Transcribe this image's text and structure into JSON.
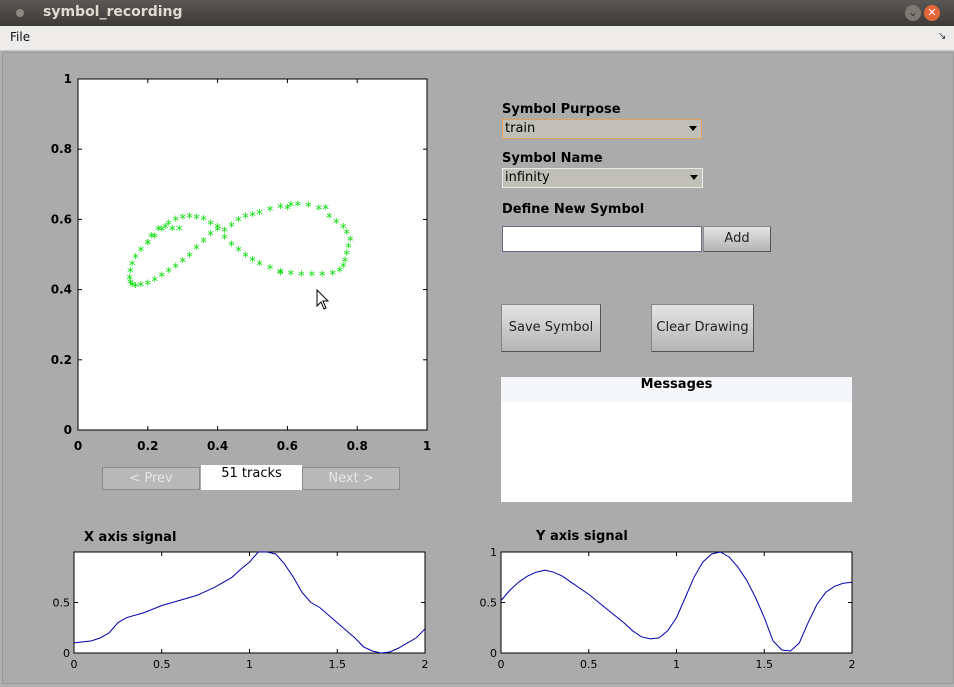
{
  "window": {
    "title": "symbol_recording"
  },
  "menu": {
    "file": "File"
  },
  "purpose": {
    "label": "Symbol Purpose",
    "value": "train"
  },
  "name": {
    "label": "Symbol Name",
    "value": "infinity"
  },
  "define": {
    "label": "Define New Symbol",
    "input_value": "",
    "add_label": "Add"
  },
  "actions": {
    "save_label": "Save Symbol",
    "clear_label": "Clear Drawing"
  },
  "messages": {
    "header": "Messages"
  },
  "nav": {
    "prev_label": "< Prev",
    "tracks_label": "51 tracks",
    "next_label": "Next >"
  },
  "chart_data": [
    {
      "type": "scatter",
      "title": "",
      "xlim": [
        0,
        1
      ],
      "ylim": [
        0,
        1
      ],
      "xticks": [
        "0",
        "0.2",
        "0.4",
        "0.6",
        "0.8",
        "1"
      ],
      "yticks": [
        "0",
        "0.2",
        "0.4",
        "0.6",
        "0.8",
        "1"
      ],
      "marker": "*",
      "color": "#00dd00",
      "x": [
        0.42,
        0.44,
        0.46,
        0.48,
        0.5,
        0.52,
        0.55,
        0.58,
        0.61,
        0.63,
        0.66,
        0.69,
        0.72,
        0.74,
        0.76,
        0.77,
        0.78,
        0.775,
        0.77,
        0.765,
        0.76,
        0.75,
        0.73,
        0.7,
        0.67,
        0.64,
        0.61,
        0.58,
        0.55,
        0.52,
        0.5,
        0.48,
        0.46,
        0.44,
        0.42,
        0.4,
        0.38,
        0.36,
        0.34,
        0.32,
        0.3,
        0.28,
        0.26,
        0.24,
        0.22,
        0.2,
        0.18,
        0.165,
        0.155,
        0.15,
        0.148,
        0.15,
        0.155,
        0.165,
        0.18,
        0.2,
        0.22,
        0.24,
        0.26,
        0.28,
        0.3,
        0.32,
        0.34,
        0.36,
        0.38,
        0.4,
        0.23,
        0.2,
        0.27,
        0.29,
        0.25,
        0.21,
        0.71,
        0.6,
        0.58
      ],
      "y": [
        0.565,
        0.58,
        0.595,
        0.605,
        0.61,
        0.615,
        0.625,
        0.632,
        0.638,
        0.64,
        0.637,
        0.628,
        0.605,
        0.59,
        0.575,
        0.56,
        0.54,
        0.52,
        0.5,
        0.48,
        0.465,
        0.452,
        0.443,
        0.44,
        0.44,
        0.44,
        0.443,
        0.448,
        0.458,
        0.47,
        0.482,
        0.495,
        0.51,
        0.525,
        0.545,
        0.568,
        0.585,
        0.598,
        0.603,
        0.605,
        0.603,
        0.597,
        0.585,
        0.568,
        0.548,
        0.53,
        0.51,
        0.49,
        0.47,
        0.45,
        0.43,
        0.418,
        0.41,
        0.408,
        0.41,
        0.415,
        0.425,
        0.437,
        0.45,
        0.463,
        0.478,
        0.495,
        0.515,
        0.535,
        0.555,
        0.575,
        0.57,
        0.53,
        0.57,
        0.57,
        0.575,
        0.55,
        0.63,
        0.63,
        0.445
      ]
    },
    {
      "type": "line",
      "title": "X axis signal",
      "xlim": [
        0,
        2
      ],
      "ylim": [
        0,
        1
      ],
      "xticks": [
        "0",
        "0.5",
        "1",
        "1.5",
        "2"
      ],
      "yticks": [
        "0",
        "0.5",
        ""
      ],
      "color": "#0000aa",
      "x": [
        0,
        0.1,
        0.15,
        0.2,
        0.25,
        0.3,
        0.4,
        0.5,
        0.6,
        0.7,
        0.8,
        0.9,
        0.95,
        1.0,
        1.05,
        1.1,
        1.15,
        1.2,
        1.25,
        1.3,
        1.35,
        1.4,
        1.5,
        1.6,
        1.65,
        1.7,
        1.75,
        1.8,
        1.85,
        1.9,
        1.95,
        2.0
      ],
      "y": [
        0.1,
        0.12,
        0.15,
        0.2,
        0.3,
        0.35,
        0.4,
        0.47,
        0.52,
        0.57,
        0.65,
        0.75,
        0.83,
        0.9,
        1.0,
        1.0,
        0.98,
        0.88,
        0.75,
        0.6,
        0.5,
        0.45,
        0.3,
        0.15,
        0.06,
        0.02,
        0.0,
        0.01,
        0.05,
        0.1,
        0.15,
        0.24
      ]
    },
    {
      "type": "line",
      "title": "Y axis signal",
      "xlim": [
        0,
        2
      ],
      "ylim": [
        0,
        1
      ],
      "xticks": [
        "0",
        "0.5",
        "1",
        "1.5",
        "2"
      ],
      "yticks": [
        "0",
        "0.5",
        "1"
      ],
      "color": "#0000aa",
      "x": [
        0,
        0.05,
        0.1,
        0.15,
        0.2,
        0.25,
        0.3,
        0.35,
        0.4,
        0.5,
        0.6,
        0.7,
        0.75,
        0.8,
        0.85,
        0.9,
        0.95,
        1.0,
        1.05,
        1.1,
        1.15,
        1.2,
        1.25,
        1.3,
        1.35,
        1.4,
        1.45,
        1.5,
        1.55,
        1.6,
        1.65,
        1.7,
        1.75,
        1.8,
        1.85,
        1.9,
        1.95,
        2.0
      ],
      "y": [
        0.52,
        0.62,
        0.7,
        0.76,
        0.8,
        0.82,
        0.8,
        0.76,
        0.7,
        0.58,
        0.44,
        0.3,
        0.22,
        0.16,
        0.14,
        0.15,
        0.22,
        0.35,
        0.55,
        0.75,
        0.9,
        0.98,
        1.0,
        0.95,
        0.85,
        0.72,
        0.55,
        0.35,
        0.12,
        0.03,
        0.02,
        0.1,
        0.3,
        0.48,
        0.6,
        0.66,
        0.69,
        0.7
      ]
    }
  ]
}
